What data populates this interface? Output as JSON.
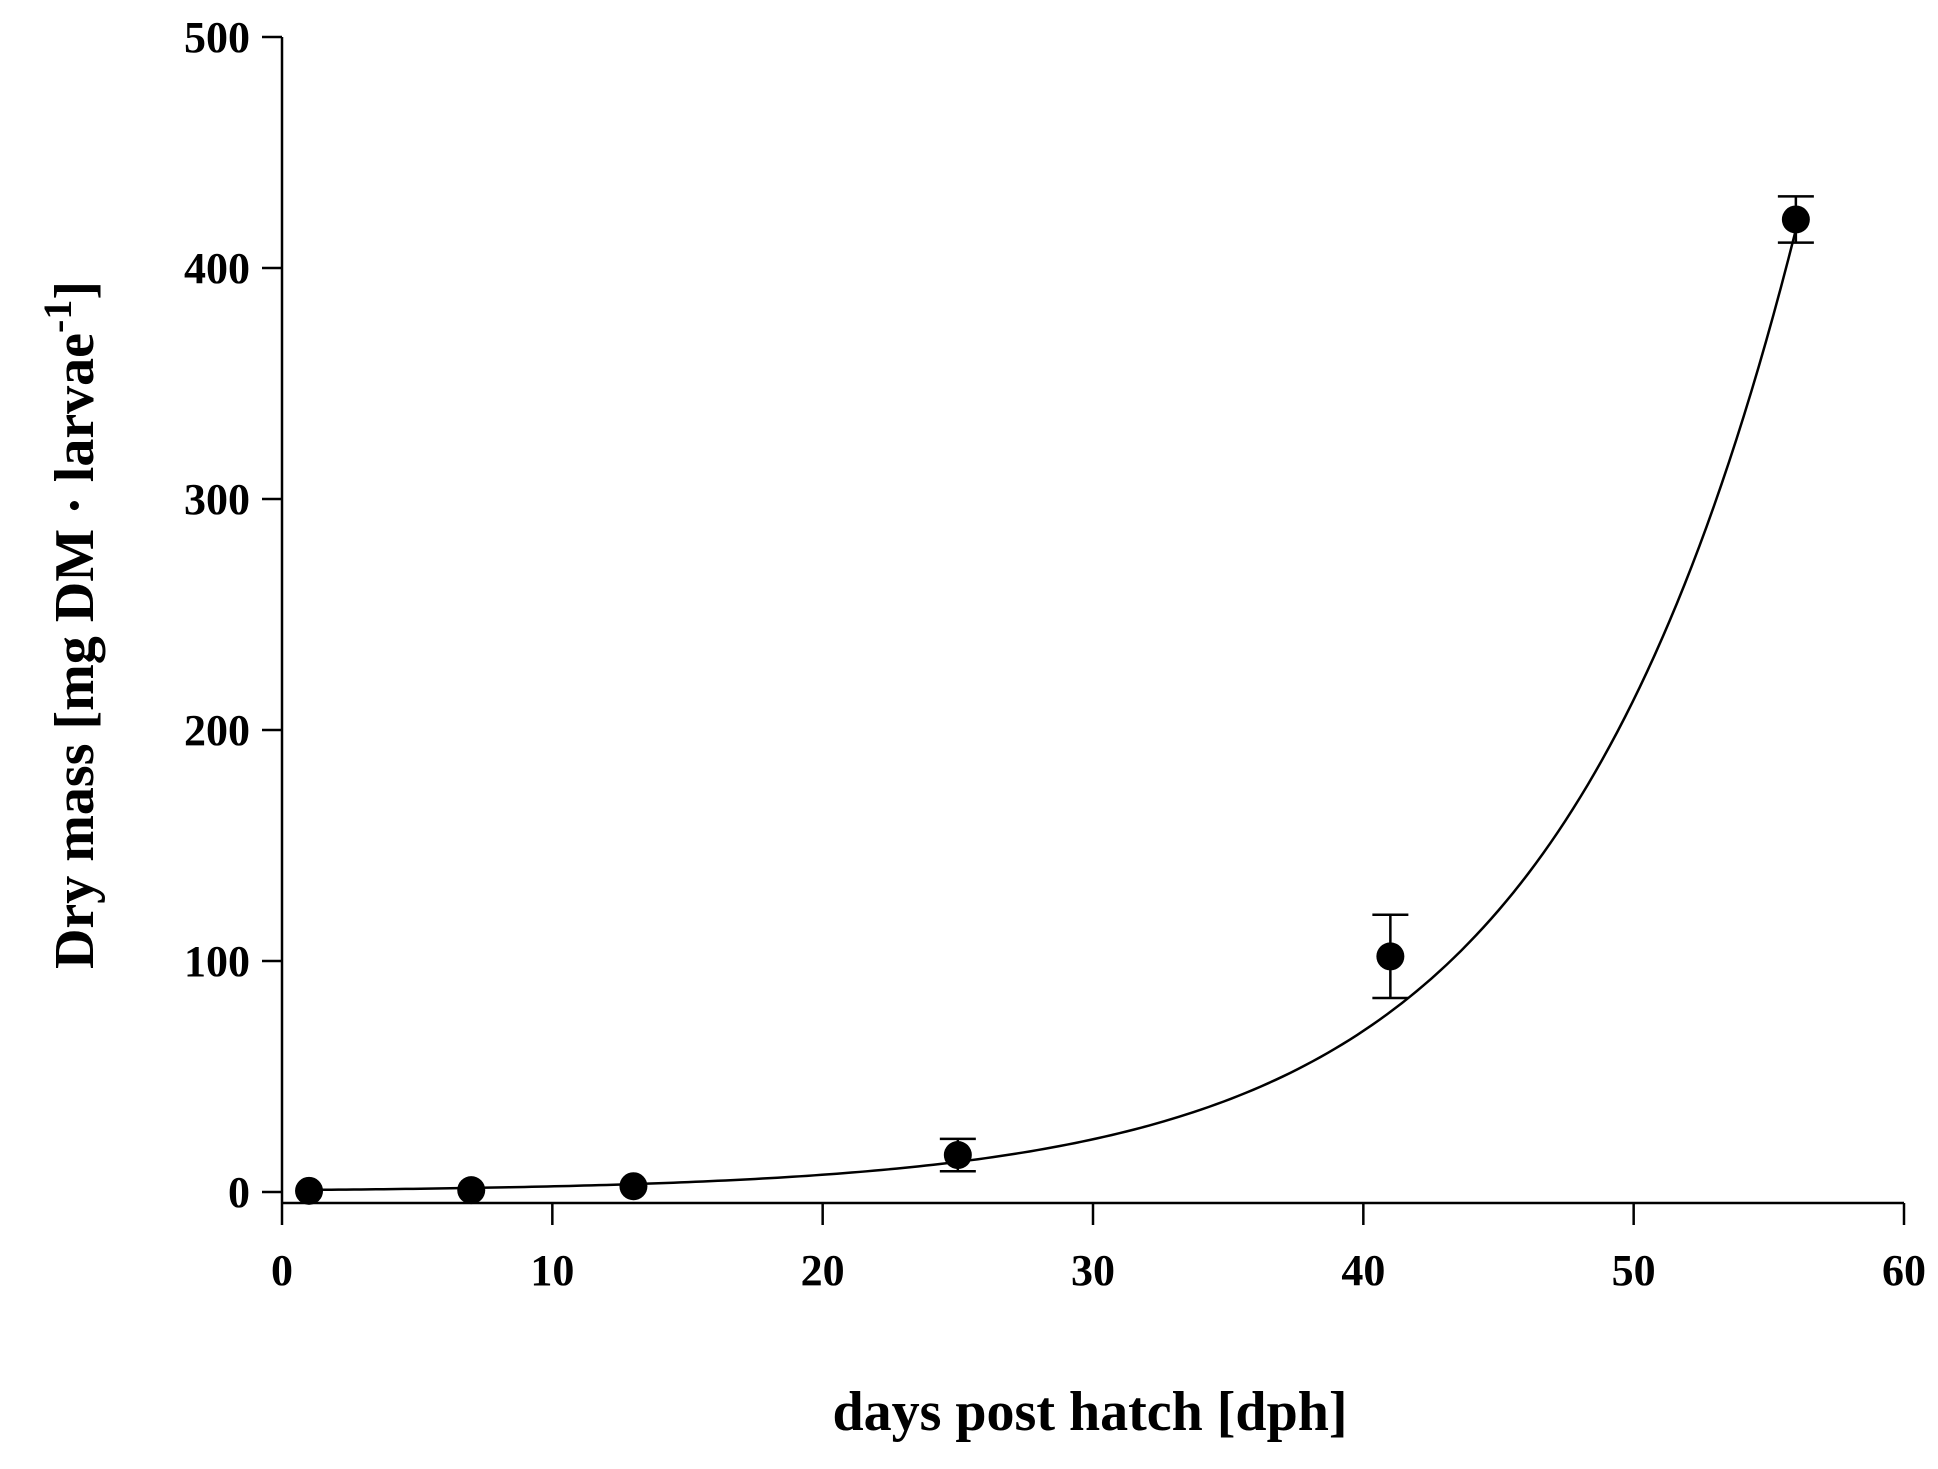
{
  "chart_data": {
    "type": "scatter",
    "title": "",
    "xlabel": "days post hatch [dph]",
    "ylabel_main": "Dry mass [mg DM · larvae",
    "ylabel_sup": "-1",
    "ylabel_close": "]",
    "xlim": [
      0,
      60
    ],
    "ylim": [
      0,
      500
    ],
    "xticks": [
      0,
      10,
      20,
      30,
      40,
      50,
      60
    ],
    "yticks": [
      0,
      100,
      200,
      300,
      400,
      500
    ],
    "xtick_labels": [
      "0",
      "10",
      "20",
      "30",
      "40",
      "50",
      "60"
    ],
    "ytick_labels": [
      "0",
      "100",
      "200",
      "300",
      "400",
      "500"
    ],
    "series": [
      {
        "name": "Dry mass",
        "x": [
          1,
          7,
          13,
          25,
          41,
          56
        ],
        "y": [
          0.5,
          0.8,
          2.5,
          16,
          102,
          421
        ],
        "err": [
          0,
          0,
          0,
          7,
          18,
          10
        ]
      }
    ],
    "fit": {
      "type": "exponential",
      "a": 0.8,
      "b": 0.1117,
      "x_range": [
        1,
        56
      ]
    },
    "grid": false,
    "legend": "none"
  }
}
